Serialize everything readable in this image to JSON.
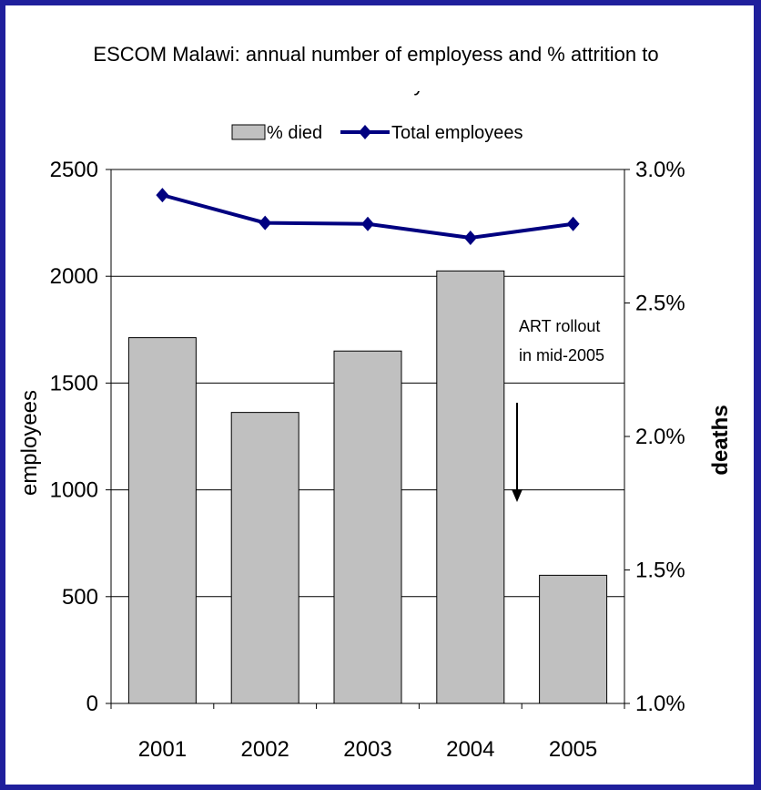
{
  "chart_data": {
    "type": "bar",
    "title_lines": [
      "ESCOM Malawi: annual number of employess and % attrition to",
      "mortality"
    ],
    "categories": [
      "2001",
      "2002",
      "2003",
      "2004",
      "2005"
    ],
    "series": [
      {
        "name": "% died",
        "kind": "bar",
        "axis": "right",
        "color": "#c0c0c0",
        "values": [
          2.37,
          2.09,
          2.32,
          2.62,
          1.48
        ]
      },
      {
        "name": "Total employees",
        "kind": "line",
        "axis": "left",
        "color": "#000080",
        "values": [
          2380,
          2250,
          2245,
          2180,
          2245
        ]
      }
    ],
    "ylabel": "employees",
    "ylim": [
      0,
      2500
    ],
    "yticks": [
      "0",
      "500",
      "1000",
      "1500",
      "2000",
      "2500"
    ],
    "y2label": "deaths",
    "y2lim": [
      1.0,
      3.0
    ],
    "y2ticks": [
      "1.0%",
      "1.5%",
      "2.0%",
      "2.5%",
      "3.0%"
    ],
    "annotation": {
      "lines": [
        "ART rollout",
        "in mid-2005"
      ]
    },
    "grid": true,
    "legend_position": "top"
  }
}
